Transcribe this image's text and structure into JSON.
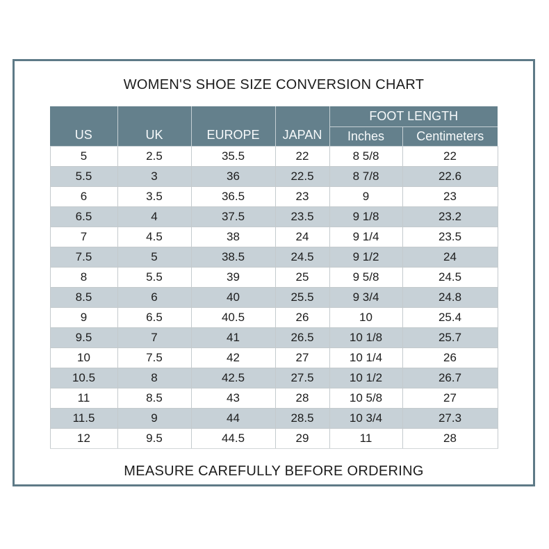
{
  "page": {
    "title": "WOMEN'S SHOE SIZE CONVERSION CHART",
    "footer_note": "MEASURE CAREFULLY BEFORE ORDERING"
  },
  "table": {
    "group_header": "FOOT LENGTH",
    "columns": [
      "US",
      "UK",
      "EUROPE",
      "JAPAN",
      "Inches",
      "Centimeters"
    ],
    "rows": [
      [
        "5",
        "2.5",
        "35.5",
        "22",
        "8 5/8",
        "22"
      ],
      [
        "5.5",
        "3",
        "36",
        "22.5",
        "8 7/8",
        "22.6"
      ],
      [
        "6",
        "3.5",
        "36.5",
        "23",
        "9",
        "23"
      ],
      [
        "6.5",
        "4",
        "37.5",
        "23.5",
        "9 1/8",
        "23.2"
      ],
      [
        "7",
        "4.5",
        "38",
        "24",
        "9 1/4",
        "23.5"
      ],
      [
        "7.5",
        "5",
        "38.5",
        "24.5",
        "9 1/2",
        "24"
      ],
      [
        "8",
        "5.5",
        "39",
        "25",
        "9 5/8",
        "24.5"
      ],
      [
        "8.5",
        "6",
        "40",
        "25.5",
        "9 3/4",
        "24.8"
      ],
      [
        "9",
        "6.5",
        "40.5",
        "26",
        "10",
        "25.4"
      ],
      [
        "9.5",
        "7",
        "41",
        "26.5",
        "10 1/8",
        "25.7"
      ],
      [
        "10",
        "7.5",
        "42",
        "27",
        "10 1/4",
        "26"
      ],
      [
        "10.5",
        "8",
        "42.5",
        "27.5",
        "10 1/2",
        "26.7"
      ],
      [
        "11",
        "8.5",
        "43",
        "28",
        "10 5/8",
        "27"
      ],
      [
        "11.5",
        "9",
        "44",
        "28.5",
        "10 3/4",
        "27.3"
      ],
      [
        "12",
        "9.5",
        "44.5",
        "29",
        "11",
        "28"
      ]
    ]
  },
  "colors": {
    "header_bg": "#64808c",
    "header_text": "#f7fafb",
    "stripe_bg": "#c7d1d7",
    "frame_border": "#5e7a87",
    "text": "#1c1c1c"
  }
}
